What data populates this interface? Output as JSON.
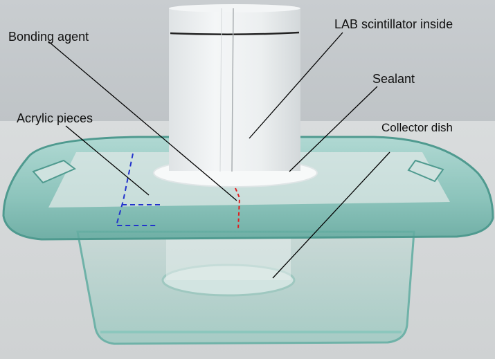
{
  "labels": {
    "bonding_agent": "Bonding agent",
    "lab_scintillator": "LAB scintillator inside",
    "sealant": "Sealant",
    "acrylic_pieces": "Acrylic pieces",
    "collector_dish": "Collector dish"
  },
  "colors": {
    "background": "#cfd3d6",
    "glass": "#8fc9c2",
    "glass_edge": "#5ea79e",
    "cylinder": "#eef0f1",
    "marker_line": "#222222",
    "leader_line": "#000000",
    "acrylic_outline": "#2233cc",
    "bond_line": "#e02020"
  }
}
